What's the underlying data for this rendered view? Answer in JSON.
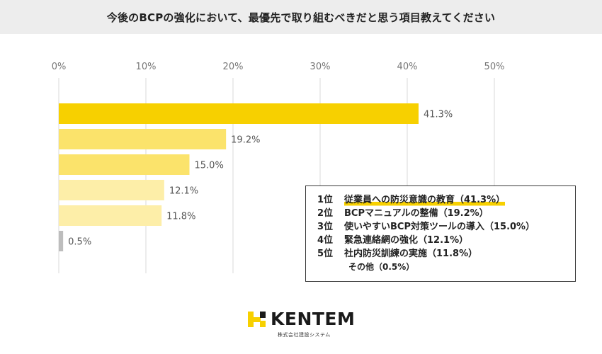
{
  "title": "今後のBCPの強化において、最優先で取り組むべきだと思う項目教えてください",
  "colors": {
    "title_bg": "#ededed",
    "bars": [
      "#f7d000",
      "#fbe36b",
      "#fbe36b",
      "#fdeea8",
      "#fdeea8",
      "#bdbdbd"
    ],
    "highlight": "#f7d000"
  },
  "chart_data": {
    "type": "bar",
    "orientation": "horizontal",
    "categories": [
      "従業員への防災意識の教育",
      "BCPマニュアルの整備",
      "使いやすいBCP対策ツールの導入",
      "緊急連絡網の強化",
      "社内防災訓練の実施",
      "その他"
    ],
    "values": [
      41.3,
      19.2,
      15.0,
      12.1,
      11.8,
      0.5
    ],
    "value_labels": [
      "41.3%",
      "19.2%",
      "15.0%",
      "12.1%",
      "11.8%",
      "0.5%"
    ],
    "ticks": [
      "0%",
      "10%",
      "20%",
      "30%",
      "40%",
      "50%"
    ],
    "tick_values": [
      0,
      10,
      20,
      30,
      40,
      50
    ],
    "xlim": [
      0,
      50
    ],
    "grid": true,
    "legend_position": "bottom-right"
  },
  "legend": {
    "rows": [
      {
        "rank": "1位",
        "text": "従業員への防災意識の教育（41.3%）"
      },
      {
        "rank": "2位",
        "text": "BCPマニュアルの整備（19.2%）"
      },
      {
        "rank": "3位",
        "text": "使いやすいBCP対策ツールの導入（15.0%）"
      },
      {
        "rank": "4位",
        "text": "緊急連絡網の強化（12.1%）"
      },
      {
        "rank": "5位",
        "text": "社内防災訓練の実施（11.8%）"
      }
    ],
    "other": "その他（0.5%）"
  },
  "logo": {
    "icon": "kentem-logo-mark",
    "word": "KENTEM",
    "subtitle": "株式会社建設システム"
  }
}
